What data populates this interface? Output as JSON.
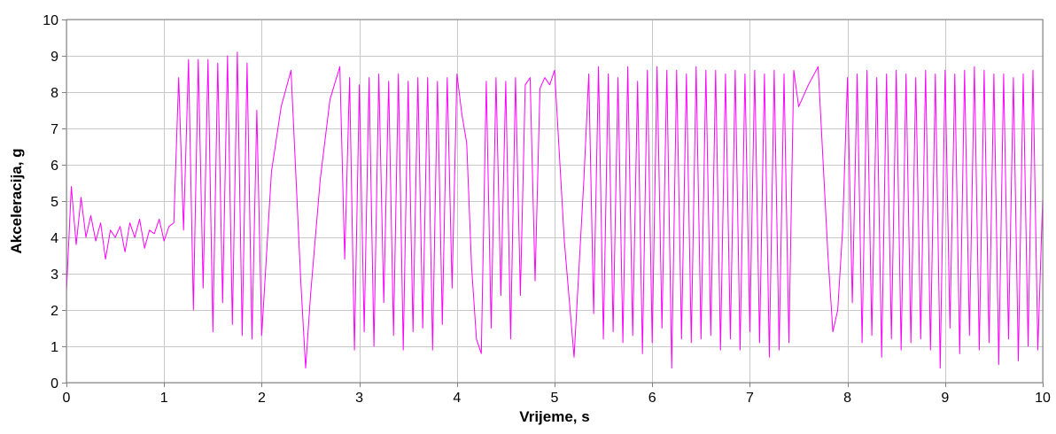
{
  "chart_data": {
    "type": "line",
    "title": "",
    "xlabel": "Vrijeme, s",
    "ylabel": "Akceleracija, g",
    "xlim": [
      0,
      10
    ],
    "ylim": [
      0,
      10
    ],
    "xticks": [
      "0",
      "1",
      "2",
      "3",
      "4",
      "5",
      "6",
      "7",
      "8",
      "9",
      "10"
    ],
    "yticks": [
      "0",
      "1",
      "2",
      "3",
      "4",
      "5",
      "6",
      "7",
      "8",
      "9",
      "10"
    ],
    "grid": true,
    "legend": "none",
    "series": [
      {
        "color": "#ff00ff",
        "x": [
          0.0,
          0.05,
          0.1,
          0.15,
          0.2,
          0.25,
          0.3,
          0.35,
          0.4,
          0.45,
          0.5,
          0.55,
          0.6,
          0.65,
          0.7,
          0.75,
          0.8,
          0.85,
          0.9,
          0.95,
          1.0,
          1.05,
          1.1,
          1.15,
          1.2,
          1.25,
          1.3,
          1.35,
          1.4,
          1.45,
          1.5,
          1.55,
          1.6,
          1.65,
          1.7,
          1.75,
          1.8,
          1.85,
          1.9,
          1.95,
          2.0,
          2.1,
          2.2,
          2.3,
          2.4,
          2.45,
          2.5,
          2.6,
          2.7,
          2.8,
          2.85,
          2.9,
          2.95,
          3.0,
          3.05,
          3.1,
          3.15,
          3.2,
          3.25,
          3.3,
          3.35,
          3.4,
          3.45,
          3.5,
          3.55,
          3.6,
          3.65,
          3.7,
          3.75,
          3.8,
          3.85,
          3.9,
          3.95,
          4.0,
          4.05,
          4.1,
          4.15,
          4.2,
          4.25,
          4.3,
          4.35,
          4.4,
          4.45,
          4.5,
          4.55,
          4.6,
          4.65,
          4.7,
          4.75,
          4.8,
          4.85,
          4.9,
          4.95,
          5.0,
          5.1,
          5.2,
          5.3,
          5.35,
          5.4,
          5.45,
          5.5,
          5.55,
          5.6,
          5.65,
          5.7,
          5.75,
          5.8,
          5.85,
          5.9,
          5.95,
          6.0,
          6.05,
          6.1,
          6.15,
          6.2,
          6.25,
          6.3,
          6.35,
          6.4,
          6.45,
          6.5,
          6.55,
          6.6,
          6.65,
          6.7,
          6.75,
          6.8,
          6.85,
          6.9,
          6.95,
          7.0,
          7.05,
          7.1,
          7.15,
          7.2,
          7.25,
          7.3,
          7.35,
          7.4,
          7.45,
          7.5,
          7.6,
          7.7,
          7.8,
          7.85,
          7.9,
          7.95,
          8.0,
          8.05,
          8.1,
          8.15,
          8.2,
          8.25,
          8.3,
          8.35,
          8.4,
          8.45,
          8.5,
          8.55,
          8.6,
          8.65,
          8.7,
          8.75,
          8.8,
          8.85,
          8.9,
          8.95,
          9.0,
          9.05,
          9.1,
          9.15,
          9.2,
          9.25,
          9.3,
          9.35,
          9.4,
          9.45,
          9.5,
          9.55,
          9.6,
          9.65,
          9.7,
          9.75,
          9.8,
          9.85,
          9.9,
          9.95,
          10.0
        ],
        "y": [
          2.5,
          5.4,
          3.8,
          5.1,
          4.0,
          4.6,
          3.9,
          4.4,
          3.4,
          4.2,
          4.0,
          4.3,
          3.6,
          4.4,
          4.0,
          4.5,
          3.7,
          4.2,
          4.1,
          4.5,
          3.9,
          4.3,
          4.4,
          8.4,
          4.2,
          8.9,
          2.0,
          8.9,
          2.6,
          8.9,
          1.4,
          8.8,
          2.2,
          9.0,
          1.6,
          9.1,
          1.3,
          8.8,
          1.2,
          7.5,
          1.3,
          5.8,
          7.6,
          8.6,
          2.8,
          0.4,
          2.4,
          5.6,
          7.8,
          8.7,
          3.4,
          8.4,
          0.9,
          8.2,
          1.4,
          8.4,
          1.0,
          8.5,
          2.2,
          8.3,
          1.3,
          8.5,
          0.9,
          8.3,
          1.4,
          8.4,
          1.5,
          8.4,
          0.9,
          8.3,
          1.6,
          8.4,
          2.6,
          8.5,
          7.4,
          6.6,
          3.2,
          1.2,
          0.8,
          8.3,
          1.5,
          8.4,
          2.4,
          8.3,
          1.2,
          8.4,
          2.4,
          8.2,
          8.4,
          2.8,
          8.1,
          8.4,
          8.2,
          8.6,
          3.9,
          0.7,
          5.6,
          8.5,
          1.9,
          8.7,
          1.2,
          8.5,
          1.4,
          8.4,
          1.1,
          8.7,
          1.3,
          8.3,
          0.8,
          8.6,
          1.1,
          8.7,
          1.5,
          8.6,
          0.4,
          8.6,
          1.2,
          8.5,
          1.1,
          8.7,
          1.2,
          8.6,
          1.3,
          8.6,
          0.9,
          8.5,
          1.2,
          8.6,
          0.9,
          8.5,
          1.4,
          8.6,
          1.1,
          8.5,
          0.7,
          8.6,
          0.9,
          8.5,
          1.1,
          8.6,
          7.6,
          8.2,
          8.7,
          3.5,
          1.4,
          2.0,
          4.2,
          8.4,
          2.2,
          8.5,
          1.1,
          8.6,
          1.3,
          8.4,
          0.7,
          8.5,
          1.2,
          8.6,
          0.9,
          8.5,
          1.1,
          8.4,
          1.2,
          8.6,
          0.9,
          8.5,
          0.4,
          8.6,
          1.5,
          8.5,
          0.8,
          8.6,
          1.3,
          8.7,
          0.9,
          8.6,
          1.1,
          8.5,
          0.5,
          8.5,
          1.2,
          8.4,
          0.6,
          8.5,
          1.0,
          8.6,
          0.9,
          5.1
        ]
      }
    ]
  }
}
